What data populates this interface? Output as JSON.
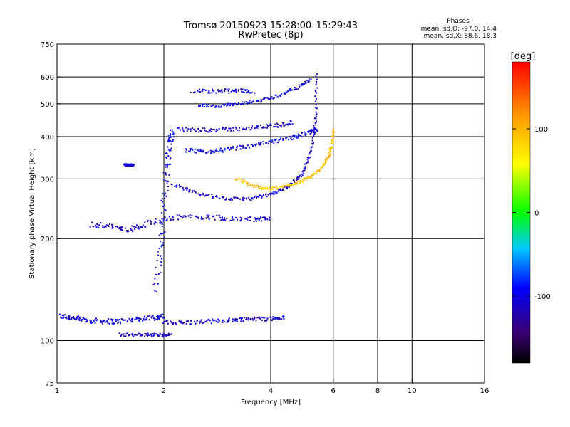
{
  "chart_data": {
    "type": "scatter",
    "title": "Tromsø 20150923 15:28:00–15:29:43",
    "subtitle": "RwPretec (8p)",
    "xlabel": "Frequency [MHz]",
    "ylabel": "Stationary phase Virtual Height [km]",
    "x_scale": "log",
    "y_scale": "log",
    "xlim": [
      1,
      16
    ],
    "ylim": [
      75,
      750
    ],
    "x_ticks": [
      1,
      2,
      4,
      6,
      8,
      10,
      16
    ],
    "x_tick_labels": [
      "1",
      "2",
      "4",
      "6",
      "8",
      "10",
      "16"
    ],
    "y_ticks": [
      75,
      100,
      200,
      300,
      400,
      500,
      600,
      750
    ],
    "y_tick_labels": [
      "75",
      "100",
      "200",
      "300",
      "400",
      "500",
      "600",
      "750"
    ],
    "grid_x": [
      2,
      4,
      6,
      8,
      10
    ],
    "grid_y": [
      100,
      200,
      300,
      400,
      500,
      600
    ],
    "grid": true,
    "stats": {
      "heading": "Phases",
      "line_o": "mean, sd,O: -97.0, 14.4",
      "line_x": "mean, sd,X:  88.6, 18.3"
    },
    "colorbar": {
      "label": "[deg]",
      "range": [
        -180,
        180
      ],
      "ticks": [
        100,
        0,
        -100
      ],
      "tick_labels": [
        "100",
        "0",
        "-100"
      ]
    },
    "traces": [
      {
        "f": [
          1.02,
          1.1,
          1.2,
          1.35,
          1.5,
          1.7,
          1.9,
          2.0
        ],
        "h": [
          118,
          117,
          115,
          114,
          114,
          116,
          117,
          118
        ],
        "phase": -105,
        "jitter": 0.025
      },
      {
        "f": [
          2.0,
          2.3,
          2.7,
          3.1,
          3.5,
          4.0,
          4.4
        ],
        "h": [
          113,
          113,
          114,
          115,
          116,
          116,
          117
        ],
        "phase": -110,
        "jitter": 0.02
      },
      {
        "f": [
          1.9,
          1.96,
          2.0,
          2.04,
          2.08,
          2.12
        ],
        "h": [
          140,
          190,
          250,
          320,
          380,
          420
        ],
        "phase": -100,
        "jitter": 0.04
      },
      {
        "f": [
          2.1,
          2.5,
          3.0,
          3.5,
          4.0,
          4.5,
          4.9,
          5.2,
          5.35,
          5.4
        ],
        "h": [
          290,
          272,
          262,
          262,
          270,
          285,
          310,
          360,
          450,
          620
        ],
        "phase": -108,
        "jitter": 0.015
      },
      {
        "f": [
          3.2,
          3.6,
          4.0,
          4.5,
          5.0,
          5.5,
          5.8,
          5.95,
          6.0
        ],
        "h": [
          300,
          285,
          280,
          287,
          298,
          318,
          345,
          380,
          420
        ],
        "phase": 90,
        "jitter": 0.015
      },
      {
        "f": [
          2.3,
          2.6,
          3.0,
          3.5,
          4.0,
          4.6,
          5.1,
          5.4
        ],
        "h": [
          365,
          360,
          366,
          375,
          385,
          398,
          410,
          420
        ],
        "phase": -100,
        "jitter": 0.02
      },
      {
        "f": [
          2.2,
          2.6,
          3.0,
          3.6,
          4.2,
          4.6
        ],
        "h": [
          420,
          418,
          420,
          425,
          432,
          440
        ],
        "phase": -110,
        "jitter": 0.02
      },
      {
        "f": [
          2.5,
          2.8,
          3.2,
          3.7,
          4.2,
          4.7,
          5.2
        ],
        "h": [
          495,
          492,
          498,
          510,
          528,
          555,
          590
        ],
        "phase": -105,
        "jitter": 0.015
      },
      {
        "f": [
          2.4,
          2.8,
          3.2,
          3.6
        ],
        "h": [
          545,
          545,
          545,
          545
        ],
        "phase": -105,
        "jitter": 0.02
      },
      {
        "f": [
          1.25,
          1.4,
          1.6,
          1.8,
          2.2,
          2.6,
          3.0,
          3.6,
          4.0
        ],
        "h": [
          220,
          218,
          212,
          222,
          232,
          232,
          230,
          228,
          228
        ],
        "phase": -110,
        "jitter": 0.025
      },
      {
        "f": [
          1.5,
          1.7,
          1.9,
          2.1
        ],
        "h": [
          104,
          104,
          104,
          104
        ],
        "phase": -110,
        "jitter": 0.015
      },
      {
        "f": [
          1.55,
          1.6,
          1.65
        ],
        "h": [
          330,
          330,
          330
        ],
        "phase": -110,
        "jitter": 0.01
      }
    ]
  }
}
